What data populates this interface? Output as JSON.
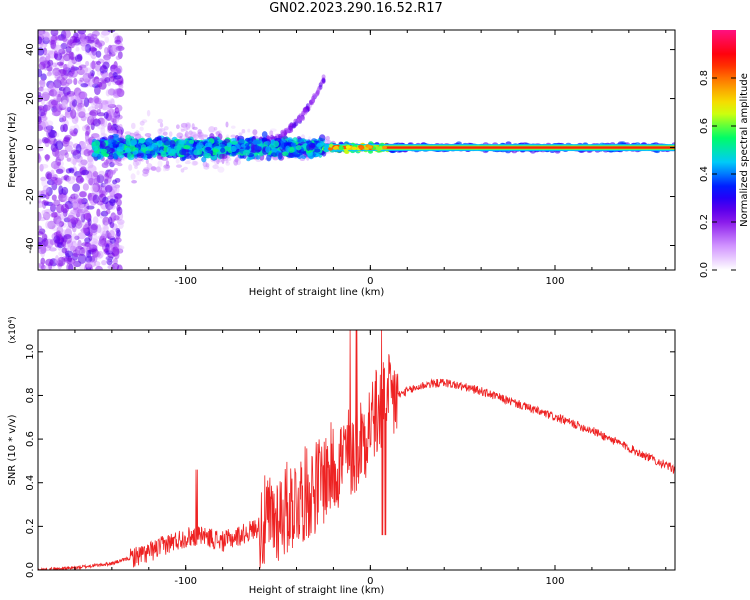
{
  "title": "GN02.2023.290.16.52.R17",
  "chart_data": [
    {
      "type": "heatmap",
      "xlabel": "Height of straight line (km)",
      "ylabel": "Frequency (Hz)",
      "xlim": [
        -180,
        165
      ],
      "ylim": [
        -50,
        48
      ],
      "xticks": [
        -100,
        0,
        100
      ],
      "yticks": [
        -40,
        -20,
        0,
        20,
        40
      ],
      "colorbar": {
        "label": "Normalized spectral amplitude",
        "range": [
          0.0,
          1.0
        ],
        "ticks": [
          0.0,
          0.2,
          0.4,
          0.6,
          0.8
        ],
        "colors": [
          "#ffffff",
          "#cc88ff",
          "#7a00e6",
          "#0000ff",
          "#00c8ff",
          "#00ff60",
          "#f0ff00",
          "#ff8c00",
          "#ff0000",
          "#ff1080"
        ]
      },
      "description_band": {
        "center_frequency": 0,
        "bright_band_from_km": -25,
        "bright_band_to_km": 165
      }
    },
    {
      "type": "line",
      "xlabel": "Height of straight line (km)",
      "ylabel": "SNR (10 * v/v)",
      "y_multiplier": "(x10⁴)",
      "xlim": [
        -180,
        165
      ],
      "ylim": [
        0.0,
        1.1
      ],
      "xticks": [
        -100,
        0,
        100
      ],
      "yticks": [
        0.0,
        0.2,
        0.4,
        0.6,
        0.8,
        1.0
      ],
      "color": "#ee2222",
      "series": [
        {
          "x": [
            -180,
            -160,
            -140,
            -120,
            -110,
            -100,
            -90,
            -80,
            -70,
            -60,
            -50,
            -40,
            -30,
            -20,
            -10,
            -5,
            0,
            5,
            10,
            15,
            20,
            30,
            40,
            60,
            80,
            100,
            120,
            140,
            165
          ],
          "values": [
            0.0,
            0.01,
            0.03,
            0.08,
            0.12,
            0.15,
            0.16,
            0.13,
            0.16,
            0.2,
            0.25,
            0.32,
            0.38,
            0.47,
            0.55,
            0.6,
            0.68,
            0.73,
            0.77,
            0.8,
            0.82,
            0.85,
            0.86,
            0.82,
            0.76,
            0.7,
            0.64,
            0.56,
            0.46
          ]
        }
      ]
    }
  ]
}
